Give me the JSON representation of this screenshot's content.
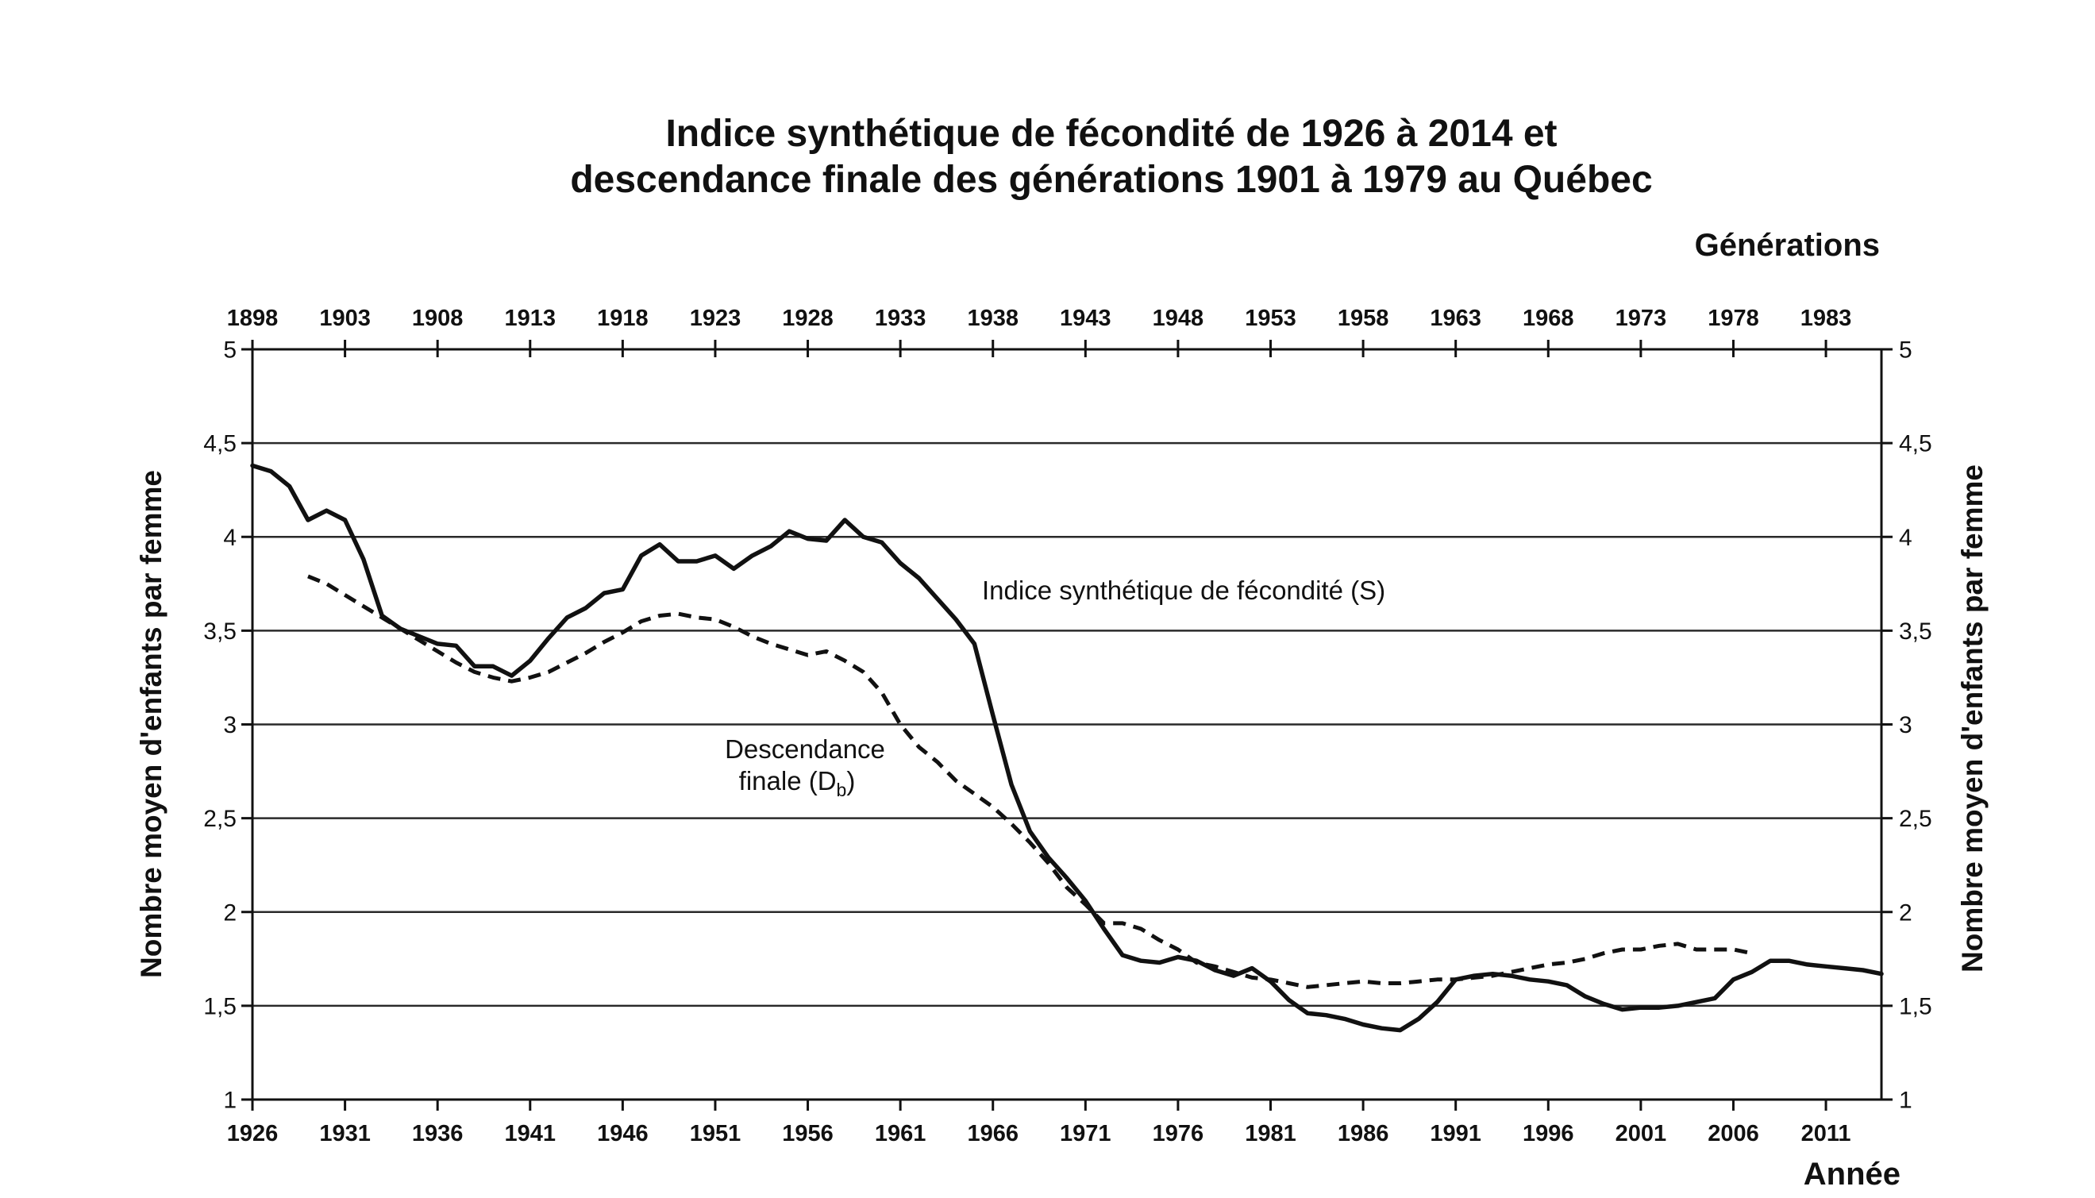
{
  "chart_data": {
    "type": "line",
    "title": [
      "Indice synthétique de fécondité de 1926 à 2014 et",
      "descendance finale des générations 1901 à 1979 au Québec"
    ],
    "xlabel": "Année",
    "xlim": [
      1926,
      2014
    ],
    "xticks": [
      1926,
      1931,
      1936,
      1941,
      1946,
      1951,
      1956,
      1961,
      1966,
      1971,
      1976,
      1981,
      1986,
      1991,
      1996,
      2001,
      2006,
      2011
    ],
    "top_axis": {
      "label": "Générations",
      "ticks": [
        1898,
        1903,
        1908,
        1913,
        1918,
        1923,
        1928,
        1933,
        1938,
        1943,
        1948,
        1953,
        1958,
        1963,
        1968,
        1973,
        1978,
        1983
      ]
    },
    "ylabel": "Nombre moyen d'enfants par femme",
    "y2label": "Nombre moyen d'enfants par femme",
    "ylim": [
      1,
      5
    ],
    "yticks": [
      "1",
      "1,5",
      "2",
      "2,5",
      "3",
      "3,5",
      "4",
      "4,5",
      "5"
    ],
    "grid": "horizontal",
    "series": [
      {
        "name": "Indice synthétique de fécondité (S)",
        "axis": "bottom",
        "line_style": "solid",
        "color": "#111111",
        "x": [
          1926,
          1927,
          1928,
          1929,
          1930,
          1931,
          1932,
          1933,
          1934,
          1935,
          1936,
          1937,
          1938,
          1939,
          1940,
          1941,
          1942,
          1943,
          1944,
          1945,
          1946,
          1947,
          1948,
          1949,
          1950,
          1951,
          1952,
          1953,
          1954,
          1955,
          1956,
          1957,
          1958,
          1959,
          1960,
          1961,
          1962,
          1963,
          1964,
          1965,
          1966,
          1967,
          1968,
          1969,
          1970,
          1971,
          1972,
          1973,
          1974,
          1975,
          1976,
          1977,
          1978,
          1979,
          1980,
          1981,
          1982,
          1983,
          1984,
          1985,
          1986,
          1987,
          1988,
          1989,
          1990,
          1991,
          1992,
          1993,
          1994,
          1995,
          1996,
          1997,
          1998,
          1999,
          2000,
          2001,
          2002,
          2003,
          2004,
          2005,
          2006,
          2007,
          2008,
          2009,
          2010,
          2011,
          2012,
          2013,
          2014
        ],
        "y": [
          4.38,
          4.35,
          4.27,
          4.09,
          4.14,
          4.09,
          3.88,
          3.58,
          3.51,
          3.47,
          3.43,
          3.42,
          3.31,
          3.31,
          3.26,
          3.34,
          3.46,
          3.57,
          3.62,
          3.7,
          3.72,
          3.9,
          3.96,
          3.87,
          3.87,
          3.9,
          3.83,
          3.9,
          3.95,
          4.03,
          3.99,
          3.98,
          4.09,
          4.0,
          3.97,
          3.86,
          3.78,
          3.67,
          3.56,
          3.43,
          3.05,
          2.68,
          2.43,
          2.29,
          2.18,
          2.06,
          1.91,
          1.77,
          1.74,
          1.73,
          1.76,
          1.74,
          1.69,
          1.66,
          1.7,
          1.63,
          1.53,
          1.46,
          1.45,
          1.43,
          1.4,
          1.38,
          1.37,
          1.43,
          1.52,
          1.64,
          1.66,
          1.67,
          1.66,
          1.64,
          1.63,
          1.61,
          1.55,
          1.51,
          1.48,
          1.49,
          1.49,
          1.5,
          1.52,
          1.54,
          1.64,
          1.68,
          1.74,
          1.74,
          1.72,
          1.71,
          1.7,
          1.69,
          1.67
        ]
      },
      {
        "label": {
          "line1": "Descendance",
          "line2": "finale (D",
          "subscript": "b",
          "close": ")"
        },
        "axis": "top",
        "line_style": "dashed",
        "color": "#111111",
        "x": [
          1901,
          1902,
          1903,
          1904,
          1905,
          1906,
          1907,
          1908,
          1909,
          1910,
          1911,
          1912,
          1913,
          1914,
          1915,
          1916,
          1917,
          1918,
          1919,
          1920,
          1921,
          1922,
          1923,
          1924,
          1925,
          1926,
          1927,
          1928,
          1929,
          1930,
          1931,
          1932,
          1933,
          1934,
          1935,
          1936,
          1937,
          1938,
          1939,
          1940,
          1941,
          1942,
          1943,
          1944,
          1945,
          1946,
          1947,
          1948,
          1949,
          1950,
          1951,
          1952,
          1953,
          1954,
          1955,
          1956,
          1957,
          1958,
          1959,
          1960,
          1961,
          1962,
          1963,
          1964,
          1965,
          1966,
          1967,
          1968,
          1969,
          1970,
          1971,
          1972,
          1973,
          1974,
          1975,
          1976,
          1977,
          1978,
          1979
        ],
        "y": [
          3.79,
          3.75,
          3.69,
          3.63,
          3.57,
          3.51,
          3.45,
          3.39,
          3.33,
          3.28,
          3.25,
          3.23,
          3.25,
          3.28,
          3.33,
          3.38,
          3.44,
          3.49,
          3.55,
          3.58,
          3.59,
          3.57,
          3.56,
          3.52,
          3.47,
          3.43,
          3.4,
          3.37,
          3.39,
          3.34,
          3.28,
          3.17,
          3.0,
          2.88,
          2.8,
          2.7,
          2.63,
          2.56,
          2.47,
          2.37,
          2.26,
          2.13,
          2.04,
          1.94,
          1.94,
          1.91,
          1.85,
          1.8,
          1.73,
          1.71,
          1.68,
          1.65,
          1.64,
          1.62,
          1.6,
          1.61,
          1.62,
          1.63,
          1.62,
          1.62,
          1.63,
          1.64,
          1.64,
          1.65,
          1.66,
          1.68,
          1.7,
          1.72,
          1.73,
          1.75,
          1.78,
          1.8,
          1.8,
          1.82,
          1.83,
          1.8,
          1.8,
          1.8,
          1.78
        ]
      }
    ]
  }
}
